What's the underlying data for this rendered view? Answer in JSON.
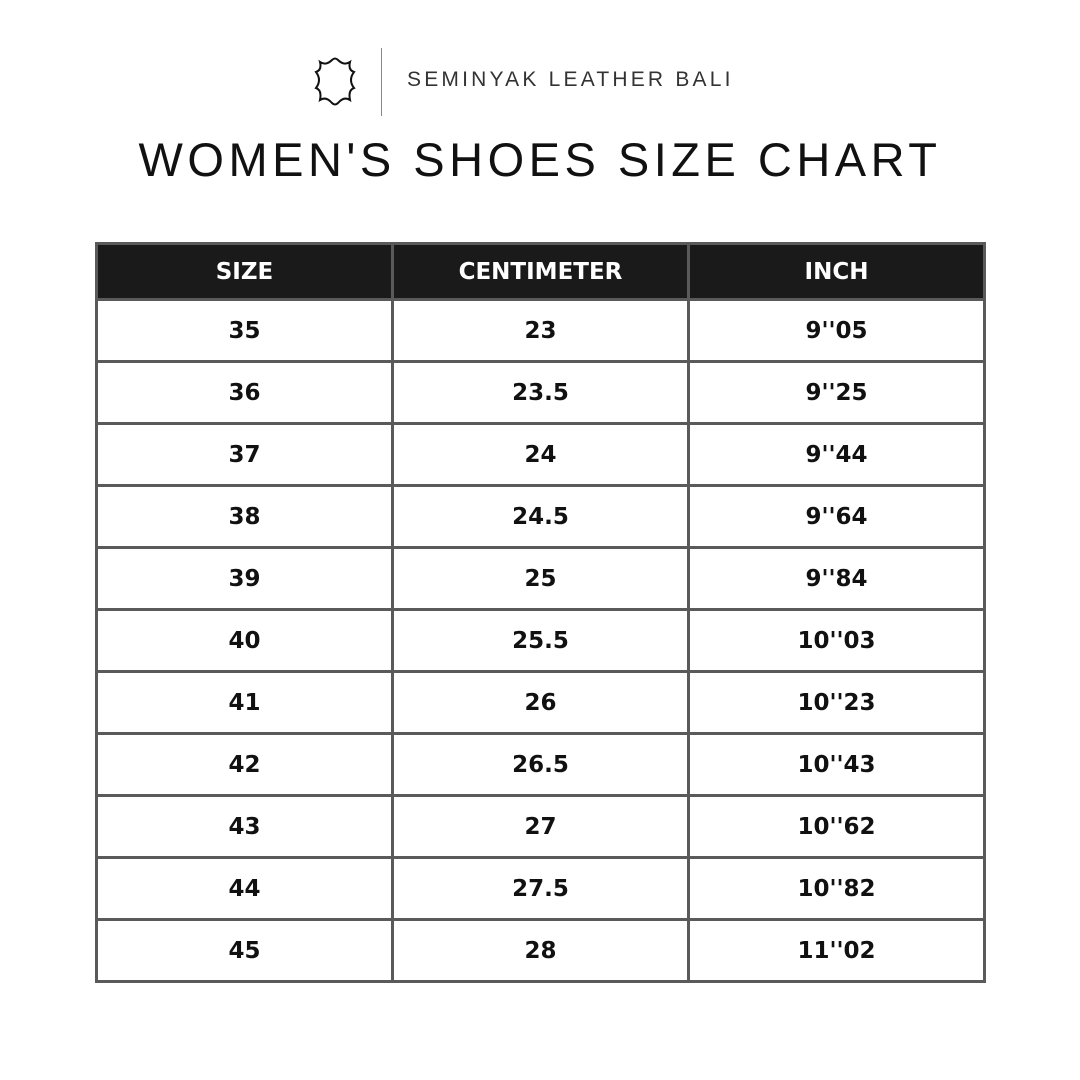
{
  "brand": {
    "name": "SEMINYAK LEATHER BALI",
    "logo_icon": "leather-hide-icon"
  },
  "title": "WOMEN'S SHOES SIZE CHART",
  "table": {
    "headers": [
      "SIZE",
      "CENTIMETER",
      "INCH"
    ],
    "rows": [
      [
        "35",
        "23",
        "9''05"
      ],
      [
        "36",
        "23.5",
        "9''25"
      ],
      [
        "37",
        "24",
        "9''44"
      ],
      [
        "38",
        "24.5",
        "9''64"
      ],
      [
        "39",
        "25",
        "9''84"
      ],
      [
        "40",
        "25.5",
        "10''03"
      ],
      [
        "41",
        "26",
        "10''23"
      ],
      [
        "42",
        "26.5",
        "10''43"
      ],
      [
        "43",
        "27",
        "10''62"
      ],
      [
        "44",
        "27.5",
        "10''82"
      ],
      [
        "45",
        "28",
        "11''02"
      ]
    ]
  },
  "colors": {
    "header_bg": "#1a1a1a",
    "border": "#5a5a5a"
  }
}
